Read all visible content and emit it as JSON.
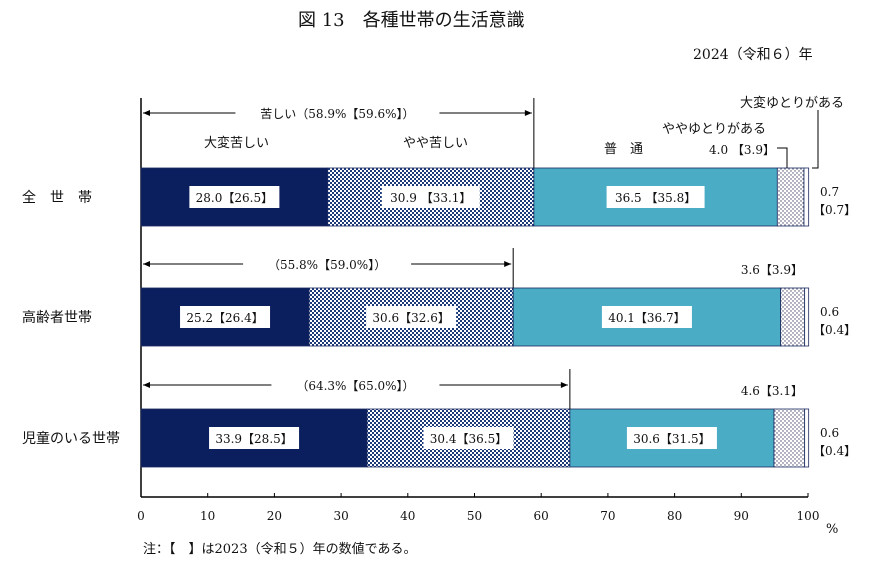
{
  "chart_data": {
    "type": "bar",
    "orientation": "horizontal-stacked",
    "title": "図 13　各種世帯の生活意識",
    "subtitle": "2024（令和６）年",
    "xunit": "%",
    "xlim": [
      0,
      100
    ],
    "xticks": [
      0,
      10,
      20,
      30,
      40,
      50,
      60,
      70,
      80,
      90,
      100
    ],
    "categories": [
      "全　世　帯",
      "高齢者世帯",
      "児童のいる世帯"
    ],
    "series": [
      {
        "name": "大変苦しい",
        "values": [
          28.0,
          25.2,
          33.9
        ],
        "prev": [
          26.5,
          26.4,
          28.5
        ],
        "color": "#0b1f5e",
        "pattern": "solid"
      },
      {
        "name": "やや苦しい",
        "values": [
          30.9,
          30.6,
          30.4
        ],
        "prev": [
          33.1,
          32.6,
          36.5
        ],
        "color": "#1c3a7a",
        "pattern": "checker"
      },
      {
        "name": "普　通",
        "values": [
          36.5,
          40.1,
          30.6
        ],
        "prev": [
          35.8,
          36.7,
          31.5
        ],
        "color": "#4bacc6",
        "pattern": "solid"
      },
      {
        "name": "ややゆとりがある",
        "values": [
          4.0,
          3.6,
          4.6
        ],
        "prev": [
          3.9,
          3.9,
          3.1
        ],
        "color": "#9ab",
        "pattern": "dots"
      },
      {
        "name": "大変ゆとりがある",
        "values": [
          0.7,
          0.6,
          0.6
        ],
        "prev": [
          0.7,
          0.4,
          0.4
        ],
        "color": "#ffffff",
        "pattern": "solid"
      }
    ],
    "segment_labels": [
      [
        "28.0【26.5】",
        "30.9 【33.1】",
        "36.5 【35.8】",
        "4.0 【3.9】",
        "0.7",
        "【0.7】"
      ],
      [
        "25.2【26.4】",
        "30.6【32.6】",
        "40.1【36.7】",
        "3.6【3.9】",
        "0.6",
        "【0.4】"
      ],
      [
        "33.9【28.5】",
        "30.4【36.5】",
        "30.6【31.5】",
        "4.6【3.1】",
        "0.6",
        "【0.4】"
      ]
    ],
    "difficult_totals": [
      "苦しい（58.9%【59.6%】）",
      "（55.8%【59.0%】）",
      "（64.3%【65.0%】）"
    ],
    "difficult_values": [
      58.9,
      55.8,
      64.3
    ],
    "note": "注：【　】は2023（令和５）年の数値である。"
  }
}
